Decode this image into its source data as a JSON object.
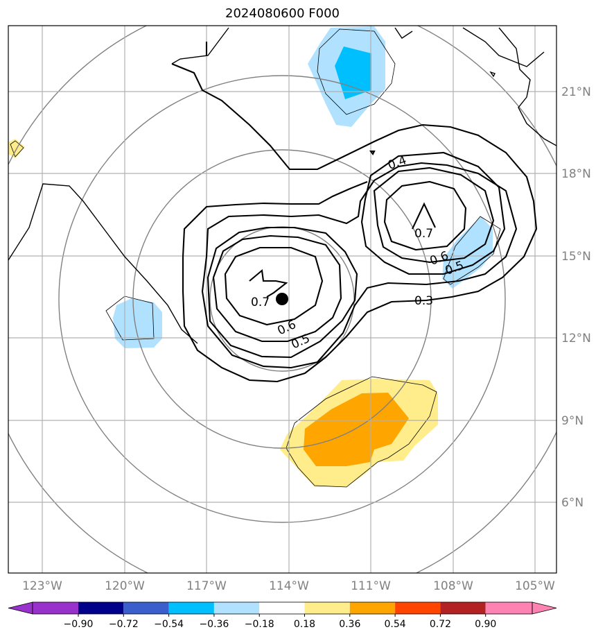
{
  "title": "2024080600 F000",
  "lat_labels": [
    "21°N",
    "18°N",
    "15°N",
    "12°N",
    "9°N",
    "6°N"
  ],
  "lon_labels": [
    "123°W",
    "120°W",
    "117°W",
    "114°W",
    "111°W",
    "108°W",
    "105°W"
  ],
  "contour_labels": [
    "0.7",
    "0.6",
    "0.5",
    "0.4",
    "0.7",
    "0.6",
    "0.5",
    "0.3"
  ],
  "colorbar": {
    "ticks": [
      "−0.90",
      "−0.72",
      "−0.54",
      "−0.36",
      "−0.18",
      "0.18",
      "0.36",
      "0.54",
      "0.72",
      "0.90"
    ],
    "colors": [
      "#9932cc",
      "#00008b",
      "#3a5fcd",
      "#00bfff",
      "#b0e2ff",
      "#ffffff",
      "#ffec8b",
      "#ffa500",
      "#ff4500",
      "#b22222",
      "#ff83b2"
    ]
  },
  "center_marker": "storm-center",
  "colors": {
    "contour": "#000000",
    "range_ring": "#808080",
    "grid": "#b0b0b0",
    "light_blue": "#b0e2ff",
    "deep_sky_blue": "#00bfff",
    "light_yellow": "#ffec8b",
    "orange": "#ffa500"
  }
}
